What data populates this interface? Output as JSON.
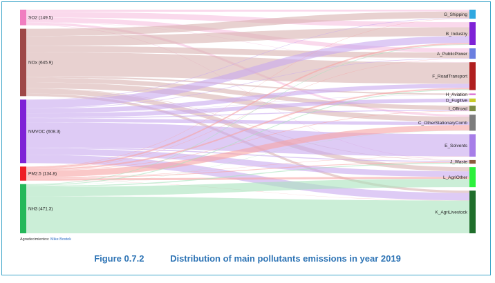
{
  "acknowledgement": {
    "label": "Agradecimientos:",
    "author": "Mike Bostok"
  },
  "caption": {
    "number": "Figure 0.7.2",
    "text": "Distribution of main pollutants emissions in year 2019"
  },
  "chart_data": {
    "type": "sankey",
    "title": "",
    "sources": [
      {
        "name": "SO2",
        "label": "SO2 (149.5)",
        "value": 149.5,
        "color": "#f07ec0",
        "link_color": "#f7bfe0"
      },
      {
        "name": "NOx",
        "label": "NOx (645.9)",
        "value": 645.9,
        "color": "#9e4848",
        "link_color": "#d9b3b0"
      },
      {
        "name": "NMVOC",
        "label": "NMVOC (608.3)",
        "value": 608.3,
        "color": "#7e22d6",
        "link_color": "#c8a8ef"
      },
      {
        "name": "PM2.5",
        "label": "PM2.5 (134.8)",
        "value": 134.8,
        "color": "#ee1c24",
        "link_color": "#f6a4a4"
      },
      {
        "name": "NH3",
        "label": "NH3 (471.3)",
        "value": 471.3,
        "color": "#25b85a",
        "link_color": "#a9e3bd"
      }
    ],
    "targets": [
      {
        "name": "G_Shipping",
        "color": "#2fa8e0"
      },
      {
        "name": "B_Industry",
        "color": "#7e22d6"
      },
      {
        "name": "A_PublicPower",
        "color": "#6b7fe0"
      },
      {
        "name": "F_RoadTransport",
        "color": "#b01f1f"
      },
      {
        "name": "H_Aviation",
        "color": "#d96bd2"
      },
      {
        "name": "D_Fugitive",
        "color": "#c9cc2a"
      },
      {
        "name": "I_Offroad",
        "color": "#7c8c45"
      },
      {
        "name": "C_OtherStationaryComb",
        "color": "#7d7d7d"
      },
      {
        "name": "E_Solvents",
        "color": "#a77ee8"
      },
      {
        "name": "J_Waste",
        "color": "#8b5a3c"
      },
      {
        "name": "L_AgriOther",
        "color": "#2cf03c"
      },
      {
        "name": "K_AgriLivestock",
        "color": "#1f6e2b"
      }
    ],
    "flows": [
      {
        "source": "SO2",
        "target": "G_Shipping",
        "value": 20
      },
      {
        "source": "SO2",
        "target": "B_Industry",
        "value": 55
      },
      {
        "source": "SO2",
        "target": "A_PublicPower",
        "value": 45
      },
      {
        "source": "SO2",
        "target": "F_RoadTransport",
        "value": 3
      },
      {
        "source": "SO2",
        "target": "C_OtherStationaryComb",
        "value": 22
      },
      {
        "source": "SO2",
        "target": "J_Waste",
        "value": 4.5
      },
      {
        "source": "NOx",
        "target": "G_Shipping",
        "value": 70
      },
      {
        "source": "NOx",
        "target": "B_Industry",
        "value": 95
      },
      {
        "source": "NOx",
        "target": "A_PublicPower",
        "value": 60
      },
      {
        "source": "NOx",
        "target": "F_RoadTransport",
        "value": 230
      },
      {
        "source": "NOx",
        "target": "H_Aviation",
        "value": 15
      },
      {
        "source": "NOx",
        "target": "I_Offroad",
        "value": 45
      },
      {
        "source": "NOx",
        "target": "C_OtherStationaryComb",
        "value": 55
      },
      {
        "source": "NOx",
        "target": "J_Waste",
        "value": 5
      },
      {
        "source": "NOx",
        "target": "L_AgriOther",
        "value": 45.9
      },
      {
        "source": "NOx",
        "target": "K_AgriLivestock",
        "value": 25
      },
      {
        "source": "NMVOC",
        "target": "G_Shipping",
        "value": 5
      },
      {
        "source": "NMVOC",
        "target": "B_Industry",
        "value": 75
      },
      {
        "source": "NMVOC",
        "target": "A_PublicPower",
        "value": 5
      },
      {
        "source": "NMVOC",
        "target": "F_RoadTransport",
        "value": 45
      },
      {
        "source": "NMVOC",
        "target": "H_Aviation",
        "value": 2
      },
      {
        "source": "NMVOC",
        "target": "D_Fugitive",
        "value": 40
      },
      {
        "source": "NMVOC",
        "target": "I_Offroad",
        "value": 10
      },
      {
        "source": "NMVOC",
        "target": "C_OtherStationaryComb",
        "value": 35
      },
      {
        "source": "NMVOC",
        "target": "E_Solvents",
        "value": 240
      },
      {
        "source": "NMVOC",
        "target": "J_Waste",
        "value": 11.3
      },
      {
        "source": "NMVOC",
        "target": "L_AgriOther",
        "value": 60
      },
      {
        "source": "NMVOC",
        "target": "K_AgriLivestock",
        "value": 80
      },
      {
        "source": "PM2.5",
        "target": "G_Shipping",
        "value": 3
      },
      {
        "source": "PM2.5",
        "target": "B_Industry",
        "value": 15
      },
      {
        "source": "PM2.5",
        "target": "A_PublicPower",
        "value": 3
      },
      {
        "source": "PM2.5",
        "target": "F_RoadTransport",
        "value": 15
      },
      {
        "source": "PM2.5",
        "target": "I_Offroad",
        "value": 5
      },
      {
        "source": "PM2.5",
        "target": "C_OtherStationaryComb",
        "value": 60
      },
      {
        "source": "PM2.5",
        "target": "E_Solvents",
        "value": 3
      },
      {
        "source": "PM2.5",
        "target": "J_Waste",
        "value": 8
      },
      {
        "source": "PM2.5",
        "target": "L_AgriOther",
        "value": 20.8
      },
      {
        "source": "PM2.5",
        "target": "K_AgriLivestock",
        "value": 2
      },
      {
        "source": "NH3",
        "target": "B_Industry",
        "value": 6
      },
      {
        "source": "NH3",
        "target": "F_RoadTransport",
        "value": 8
      },
      {
        "source": "NH3",
        "target": "C_OtherStationaryComb",
        "value": 2
      },
      {
        "source": "NH3",
        "target": "J_Waste",
        "value": 10
      },
      {
        "source": "NH3",
        "target": "L_AgriOther",
        "value": 90.3
      },
      {
        "source": "NH3",
        "target": "K_AgriLivestock",
        "value": 355
      }
    ]
  }
}
